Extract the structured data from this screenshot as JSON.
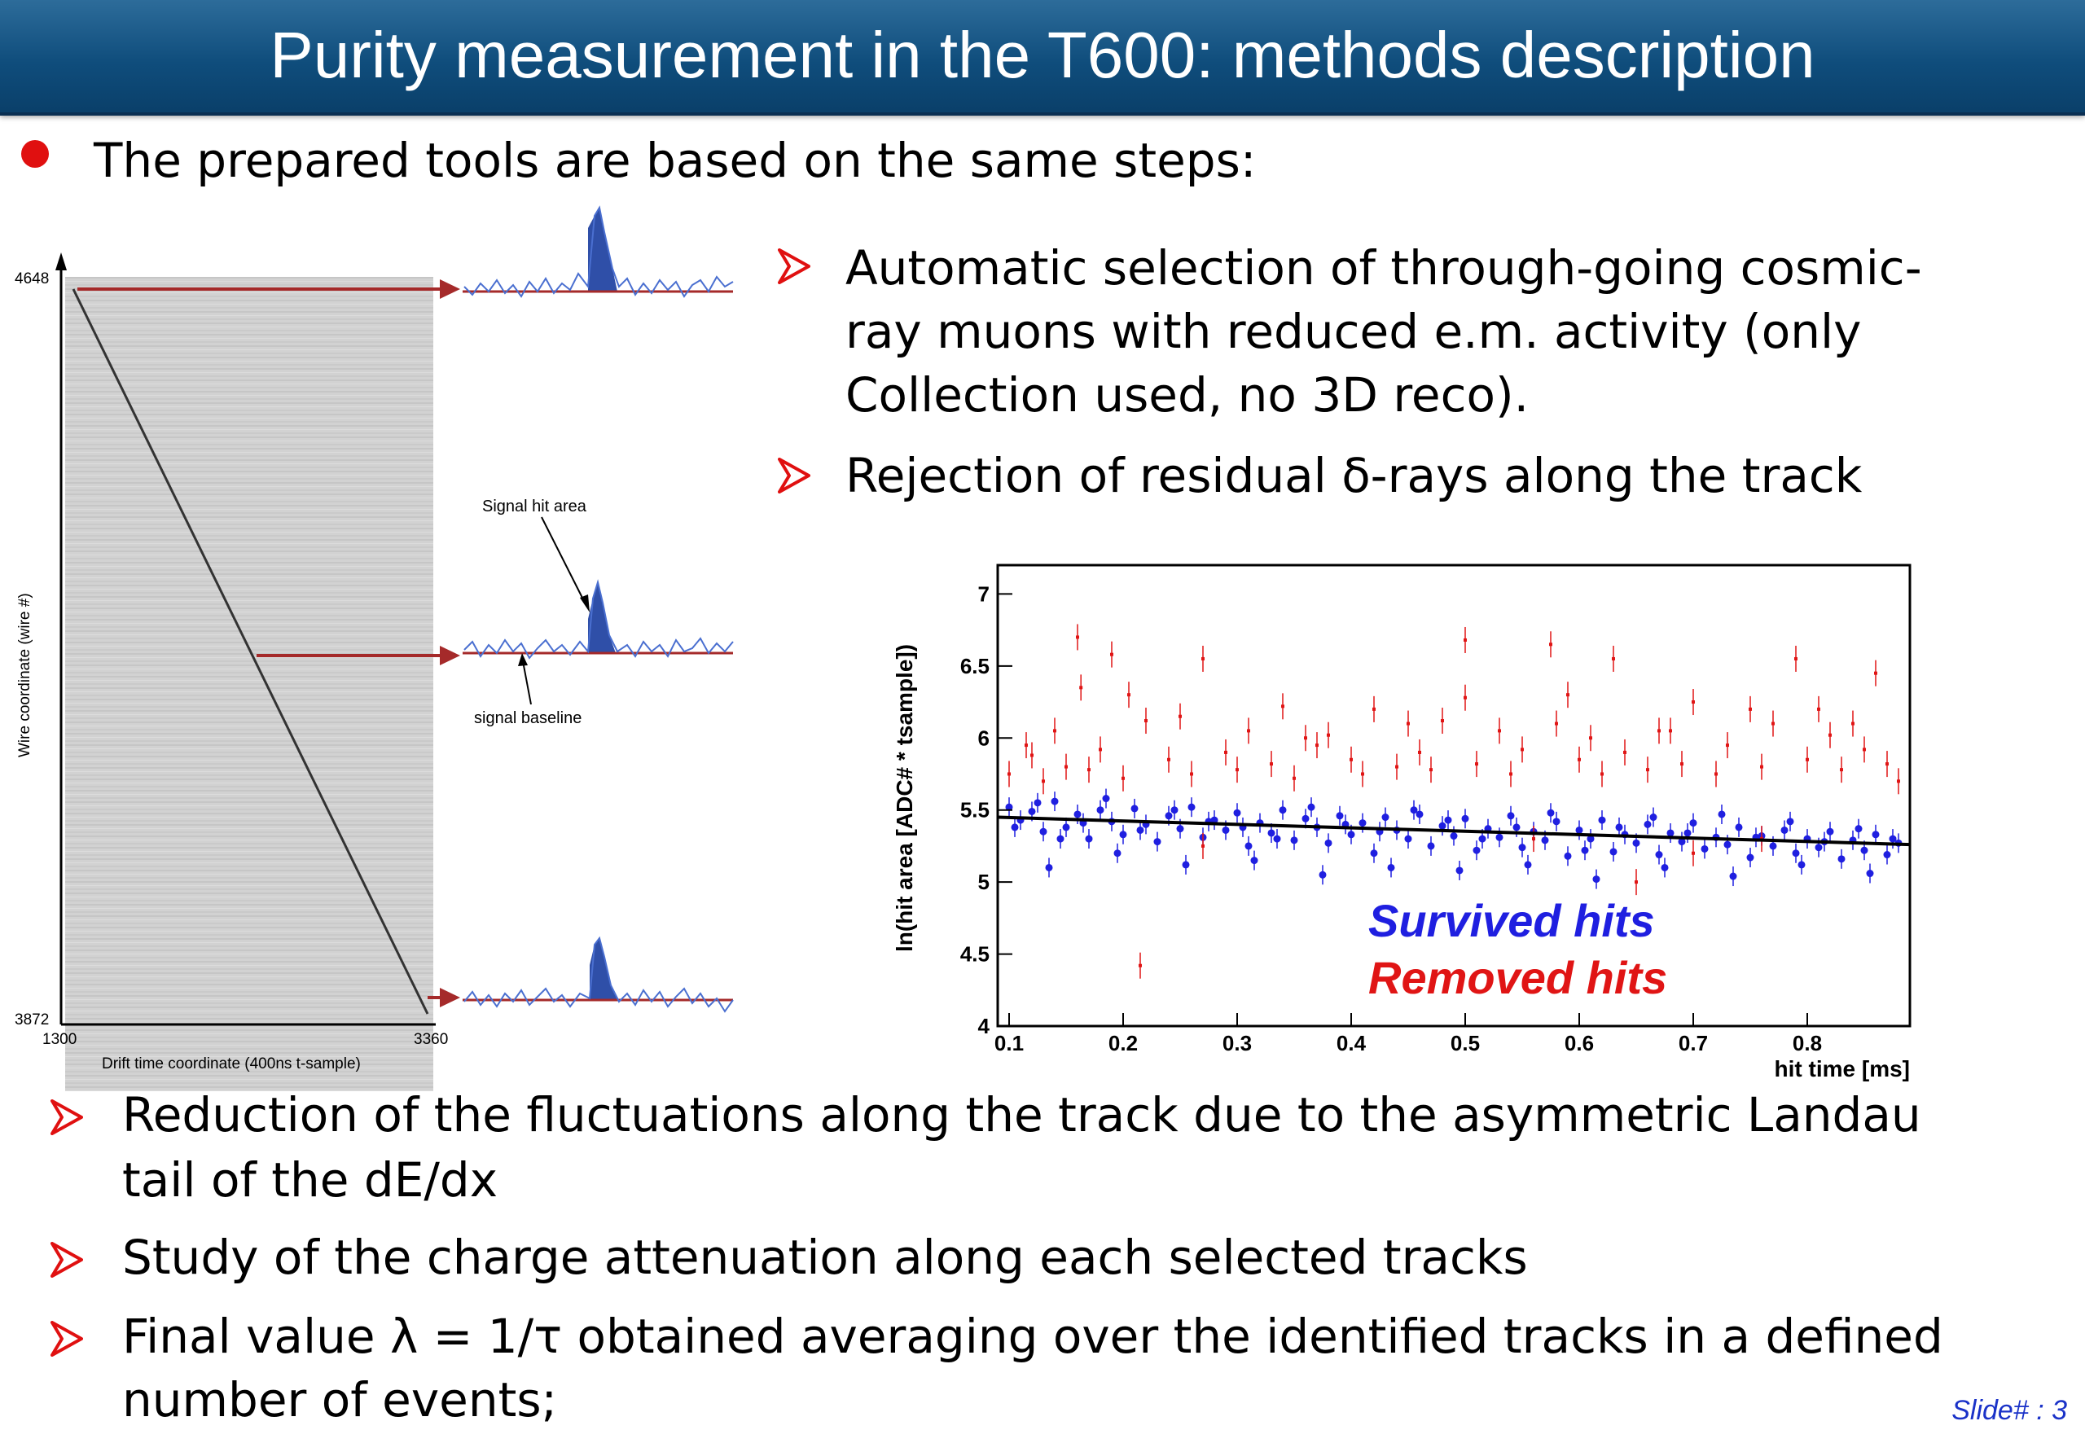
{
  "title": "Purity measurement in the T600: methods description",
  "intro": "The prepared tools are based on the same steps:",
  "steps_right": [
    [
      "Automatic selection of through-going cosmic-",
      "ray muons with reduced e.m. activity (only",
      "Collection used, no 3D reco)."
    ],
    [
      "Rejection of residual δ-rays along the track"
    ]
  ],
  "steps_bottom": [
    [
      "Reduction of the fluctuations along the track due to the asymmetric Landau",
      "tail of the dE/dx"
    ],
    [
      "Study of the charge attenuation along each selected tracks"
    ],
    [
      "Final value λ = 1/τ  obtained averaging over the identified tracks in a defined",
      "number of events;"
    ]
  ],
  "slide_number": "Slide#  : 3",
  "event_display": {
    "y_axis_label": "Wire coordinate (wire #)",
    "x_axis_label": "Drift time coordinate (400ns t-sample)",
    "y_top": "4648",
    "y_bottom": "3872",
    "x_left": "1300",
    "x_right": "3360",
    "annotation_signal": "Signal hit area",
    "annotation_baseline": "signal baseline"
  },
  "colors": {
    "title_bar": "#0f4d7c",
    "bullet": "#e01010",
    "survived": "#1f1fe0",
    "removed": "#e01515",
    "arrow": "#a52a2a",
    "peak_fill": "#2f4fa8"
  },
  "chart_data": {
    "type": "scatter",
    "title": "",
    "xlabel": "hit time [ms]",
    "ylabel": "ln(hit area [ADC# * tsample])",
    "xlim": [
      0.09,
      0.89
    ],
    "ylim": [
      4,
      7.2
    ],
    "x_ticks": [
      "0.1",
      "0.2",
      "0.3",
      "0.4",
      "0.5",
      "0.6",
      "0.7",
      "0.8"
    ],
    "y_ticks": [
      "4",
      "4.5",
      "5",
      "5.5",
      "6",
      "6.5",
      "7"
    ],
    "grid": false,
    "legend_position": "bottom-right",
    "fit_line": {
      "x": [
        0.09,
        0.89
      ],
      "y": [
        5.45,
        5.26
      ]
    },
    "series": [
      {
        "name": "Survived hits",
        "color": "#1f1fe0",
        "points": [
          [
            0.1,
            5.52
          ],
          [
            0.11,
            5.43
          ],
          [
            0.12,
            5.49
          ],
          [
            0.13,
            5.35
          ],
          [
            0.14,
            5.56
          ],
          [
            0.15,
            5.38
          ],
          [
            0.16,
            5.47
          ],
          [
            0.17,
            5.3
          ],
          [
            0.18,
            5.5
          ],
          [
            0.19,
            5.42
          ],
          [
            0.2,
            5.33
          ],
          [
            0.21,
            5.51
          ],
          [
            0.22,
            5.4
          ],
          [
            0.23,
            5.28
          ],
          [
            0.24,
            5.46
          ],
          [
            0.25,
            5.37
          ],
          [
            0.26,
            5.52
          ],
          [
            0.27,
            5.31
          ],
          [
            0.28,
            5.43
          ],
          [
            0.29,
            5.36
          ],
          [
            0.3,
            5.48
          ],
          [
            0.31,
            5.25
          ],
          [
            0.32,
            5.41
          ],
          [
            0.33,
            5.34
          ],
          [
            0.34,
            5.5
          ],
          [
            0.35,
            5.29
          ],
          [
            0.36,
            5.44
          ],
          [
            0.37,
            5.38
          ],
          [
            0.38,
            5.27
          ],
          [
            0.39,
            5.46
          ],
          [
            0.4,
            5.33
          ],
          [
            0.41,
            5.41
          ],
          [
            0.42,
            5.2
          ],
          [
            0.43,
            5.45
          ],
          [
            0.44,
            5.36
          ],
          [
            0.45,
            5.3
          ],
          [
            0.46,
            5.47
          ],
          [
            0.47,
            5.25
          ],
          [
            0.48,
            5.39
          ],
          [
            0.49,
            5.32
          ],
          [
            0.5,
            5.44
          ],
          [
            0.51,
            5.22
          ],
          [
            0.52,
            5.37
          ],
          [
            0.53,
            5.31
          ],
          [
            0.54,
            5.46
          ],
          [
            0.55,
            5.24
          ],
          [
            0.56,
            5.35
          ],
          [
            0.57,
            5.29
          ],
          [
            0.58,
            5.42
          ],
          [
            0.59,
            5.18
          ],
          [
            0.6,
            5.36
          ],
          [
            0.61,
            5.3
          ],
          [
            0.62,
            5.43
          ],
          [
            0.63,
            5.21
          ],
          [
            0.64,
            5.33
          ],
          [
            0.65,
            5.27
          ],
          [
            0.66,
            5.4
          ],
          [
            0.67,
            5.19
          ],
          [
            0.68,
            5.34
          ],
          [
            0.69,
            5.28
          ],
          [
            0.7,
            5.41
          ],
          [
            0.71,
            5.23
          ],
          [
            0.72,
            5.31
          ],
          [
            0.73,
            5.26
          ],
          [
            0.74,
            5.38
          ],
          [
            0.75,
            5.17
          ],
          [
            0.76,
            5.32
          ],
          [
            0.77,
            5.25
          ],
          [
            0.78,
            5.36
          ],
          [
            0.79,
            5.2
          ],
          [
            0.8,
            5.3
          ],
          [
            0.81,
            5.24
          ],
          [
            0.82,
            5.35
          ],
          [
            0.83,
            5.16
          ],
          [
            0.84,
            5.29
          ],
          [
            0.85,
            5.22
          ],
          [
            0.86,
            5.33
          ],
          [
            0.87,
            5.19
          ],
          [
            0.88,
            5.27
          ],
          [
            0.105,
            5.38
          ],
          [
            0.125,
            5.55
          ],
          [
            0.145,
            5.3
          ],
          [
            0.165,
            5.41
          ],
          [
            0.185,
            5.58
          ],
          [
            0.215,
            5.36
          ],
          [
            0.245,
            5.5
          ],
          [
            0.275,
            5.42
          ],
          [
            0.305,
            5.38
          ],
          [
            0.335,
            5.3
          ],
          [
            0.365,
            5.52
          ],
          [
            0.395,
            5.4
          ],
          [
            0.425,
            5.35
          ],
          [
            0.455,
            5.5
          ],
          [
            0.485,
            5.43
          ],
          [
            0.515,
            5.3
          ],
          [
            0.545,
            5.38
          ],
          [
            0.575,
            5.48
          ],
          [
            0.605,
            5.22
          ],
          [
            0.635,
            5.38
          ],
          [
            0.665,
            5.45
          ],
          [
            0.695,
            5.34
          ],
          [
            0.725,
            5.47
          ],
          [
            0.755,
            5.31
          ],
          [
            0.785,
            5.42
          ],
          [
            0.815,
            5.28
          ],
          [
            0.845,
            5.37
          ],
          [
            0.875,
            5.3
          ],
          [
            0.135,
            5.1
          ],
          [
            0.255,
            5.12
          ],
          [
            0.375,
            5.05
          ],
          [
            0.495,
            5.08
          ],
          [
            0.615,
            5.02
          ],
          [
            0.735,
            5.04
          ],
          [
            0.855,
            5.06
          ],
          [
            0.195,
            5.2
          ],
          [
            0.315,
            5.15
          ],
          [
            0.435,
            5.1
          ],
          [
            0.555,
            5.12
          ],
          [
            0.675,
            5.1
          ],
          [
            0.795,
            5.12
          ]
        ]
      },
      {
        "name": "Removed hits",
        "color": "#e01515",
        "points": [
          [
            0.1,
            5.75
          ],
          [
            0.115,
            5.95
          ],
          [
            0.13,
            5.7
          ],
          [
            0.14,
            6.05
          ],
          [
            0.15,
            5.8
          ],
          [
            0.16,
            6.7
          ],
          [
            0.163,
            6.35
          ],
          [
            0.17,
            5.78
          ],
          [
            0.18,
            5.92
          ],
          [
            0.19,
            6.58
          ],
          [
            0.2,
            5.72
          ],
          [
            0.205,
            6.3
          ],
          [
            0.215,
            4.42
          ],
          [
            0.22,
            6.12
          ],
          [
            0.24,
            5.85
          ],
          [
            0.25,
            6.15
          ],
          [
            0.26,
            5.75
          ],
          [
            0.27,
            6.55
          ],
          [
            0.29,
            5.9
          ],
          [
            0.3,
            5.78
          ],
          [
            0.31,
            6.05
          ],
          [
            0.33,
            5.82
          ],
          [
            0.34,
            6.22
          ],
          [
            0.35,
            5.72
          ],
          [
            0.37,
            5.95
          ],
          [
            0.38,
            6.02
          ],
          [
            0.4,
            5.85
          ],
          [
            0.41,
            5.75
          ],
          [
            0.42,
            6.2
          ],
          [
            0.44,
            5.8
          ],
          [
            0.45,
            6.1
          ],
          [
            0.47,
            5.78
          ],
          [
            0.48,
            6.12
          ],
          [
            0.5,
            6.68
          ],
          [
            0.5,
            6.28
          ],
          [
            0.51,
            5.82
          ],
          [
            0.53,
            6.05
          ],
          [
            0.54,
            5.75
          ],
          [
            0.55,
            5.92
          ],
          [
            0.56,
            5.3
          ],
          [
            0.575,
            6.65
          ],
          [
            0.58,
            6.1
          ],
          [
            0.6,
            5.85
          ],
          [
            0.61,
            6.0
          ],
          [
            0.62,
            5.75
          ],
          [
            0.63,
            6.55
          ],
          [
            0.64,
            5.9
          ],
          [
            0.66,
            5.78
          ],
          [
            0.67,
            6.05
          ],
          [
            0.69,
            5.82
          ],
          [
            0.7,
            6.25
          ],
          [
            0.72,
            5.75
          ],
          [
            0.73,
            5.95
          ],
          [
            0.75,
            6.2
          ],
          [
            0.76,
            5.8
          ],
          [
            0.77,
            6.1
          ],
          [
            0.79,
            6.55
          ],
          [
            0.8,
            5.85
          ],
          [
            0.82,
            6.02
          ],
          [
            0.83,
            5.78
          ],
          [
            0.84,
            6.1
          ],
          [
            0.85,
            5.92
          ],
          [
            0.86,
            6.45
          ],
          [
            0.87,
            5.82
          ],
          [
            0.88,
            5.7
          ],
          [
            0.27,
            5.25
          ],
          [
            0.7,
            5.2
          ],
          [
            0.76,
            5.3
          ],
          [
            0.65,
            5.0
          ],
          [
            0.12,
            5.88
          ],
          [
            0.36,
            6.0
          ],
          [
            0.46,
            5.9
          ],
          [
            0.59,
            6.3
          ],
          [
            0.68,
            6.05
          ],
          [
            0.81,
            6.2
          ]
        ]
      }
    ]
  }
}
